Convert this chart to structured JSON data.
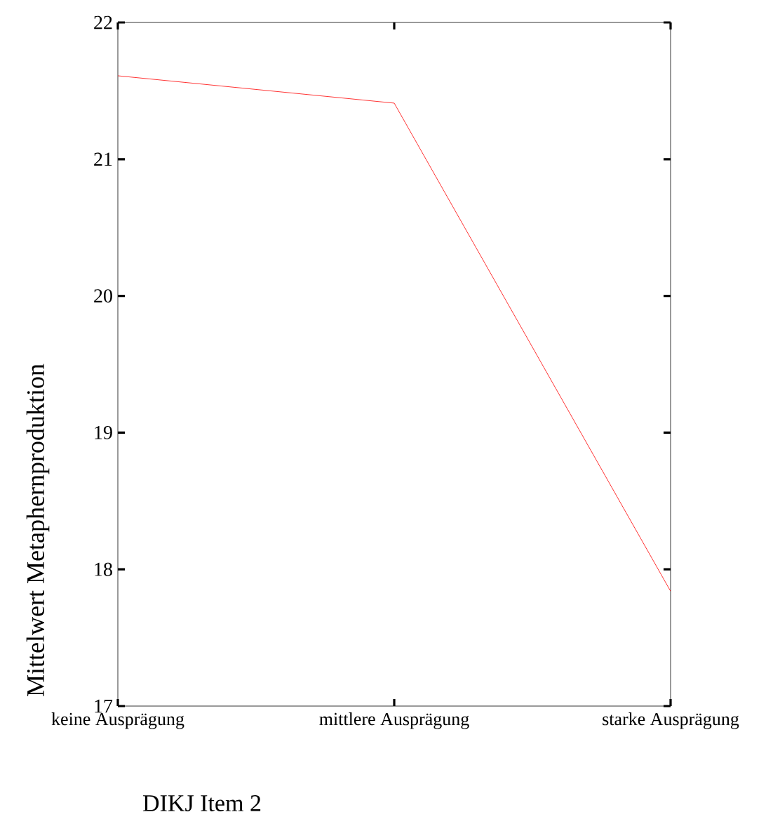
{
  "chart_data": {
    "type": "line",
    "xlabel": "DIKJ Item 2",
    "ylabel": "Mittelwert Metaphernproduktion",
    "categories": [
      "keine Ausprägung",
      "mittlere Ausprägung",
      "starke Ausprägung"
    ],
    "series": [
      {
        "color": "#ff0000",
        "values": [
          21.61,
          21.41,
          17.84
        ]
      }
    ],
    "ylim": [
      17,
      22
    ],
    "yticks": [
      17,
      18,
      19,
      20,
      21,
      22
    ],
    "grid": false,
    "marker": "none",
    "line_style": "solid"
  }
}
